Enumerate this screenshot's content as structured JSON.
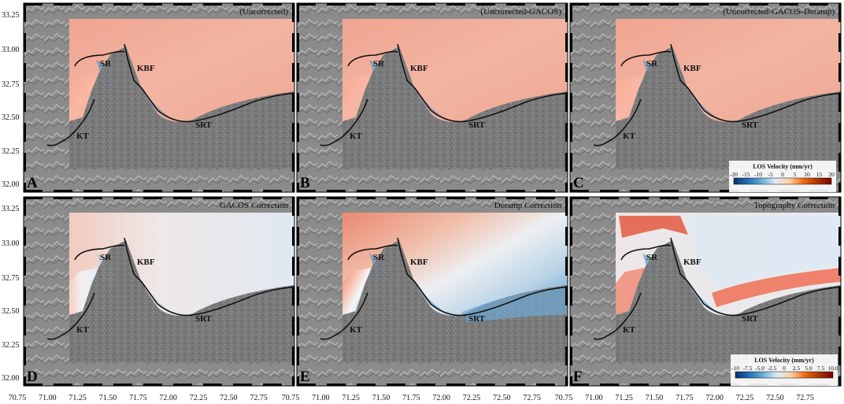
{
  "panels": [
    {
      "letter": "A",
      "title": "(Uncorrected)",
      "style": "warm"
    },
    {
      "letter": "B",
      "title": "(Uncorrected-GACOS)",
      "style": "warm"
    },
    {
      "letter": "C",
      "title": "(Uncorrected-GACOS-Deramp)",
      "style": "warm"
    },
    {
      "letter": "D",
      "title": "GACOS Correction",
      "style": "gacos"
    },
    {
      "letter": "E",
      "title": "Deramp Correction",
      "style": "deramp"
    },
    {
      "letter": "F",
      "title": "Topography Correction",
      "style": "topo"
    }
  ],
  "features": {
    "sr": "SR",
    "kbf": "KBF",
    "kt": "KT",
    "srt": "SRT"
  },
  "y_ticks": [
    "33.25",
    "33.00",
    "32.75",
    "32.50",
    "32.25",
    "32.00"
  ],
  "x_ticks": [
    "70.75",
    "71.00",
    "71.25",
    "71.50",
    "71.75",
    "72.00",
    "72.25",
    "72.50",
    "72.75"
  ],
  "colorbar_top": {
    "title": "LOS Velocity (mm/yr)",
    "ticks": [
      "-20",
      "-15",
      "-10",
      "-5",
      "0",
      "5",
      "10",
      "15",
      "20"
    ],
    "colors": [
      "#08306b",
      "#2171b5",
      "#6baed6",
      "#deebf7",
      "#fdd0a2",
      "#f16913",
      "#a63603",
      "#7f0000"
    ]
  },
  "colorbar_bottom": {
    "title": "LOS Velocity (mm/yr)",
    "ticks": [
      "-10",
      "-7.5",
      "-5.0",
      "-2.5",
      "0",
      "2.5",
      "5.0",
      "7.5",
      "10.0"
    ],
    "colors": [
      "#08306b",
      "#2171b5",
      "#6baed6",
      "#deebf7",
      "#fdd0a2",
      "#f16913",
      "#a63603",
      "#7f0000"
    ]
  },
  "colors": {
    "hillshade": "#8a8a8a",
    "warm": "#f5a995",
    "cool": "#4a92c6",
    "fault": "#111111"
  }
}
